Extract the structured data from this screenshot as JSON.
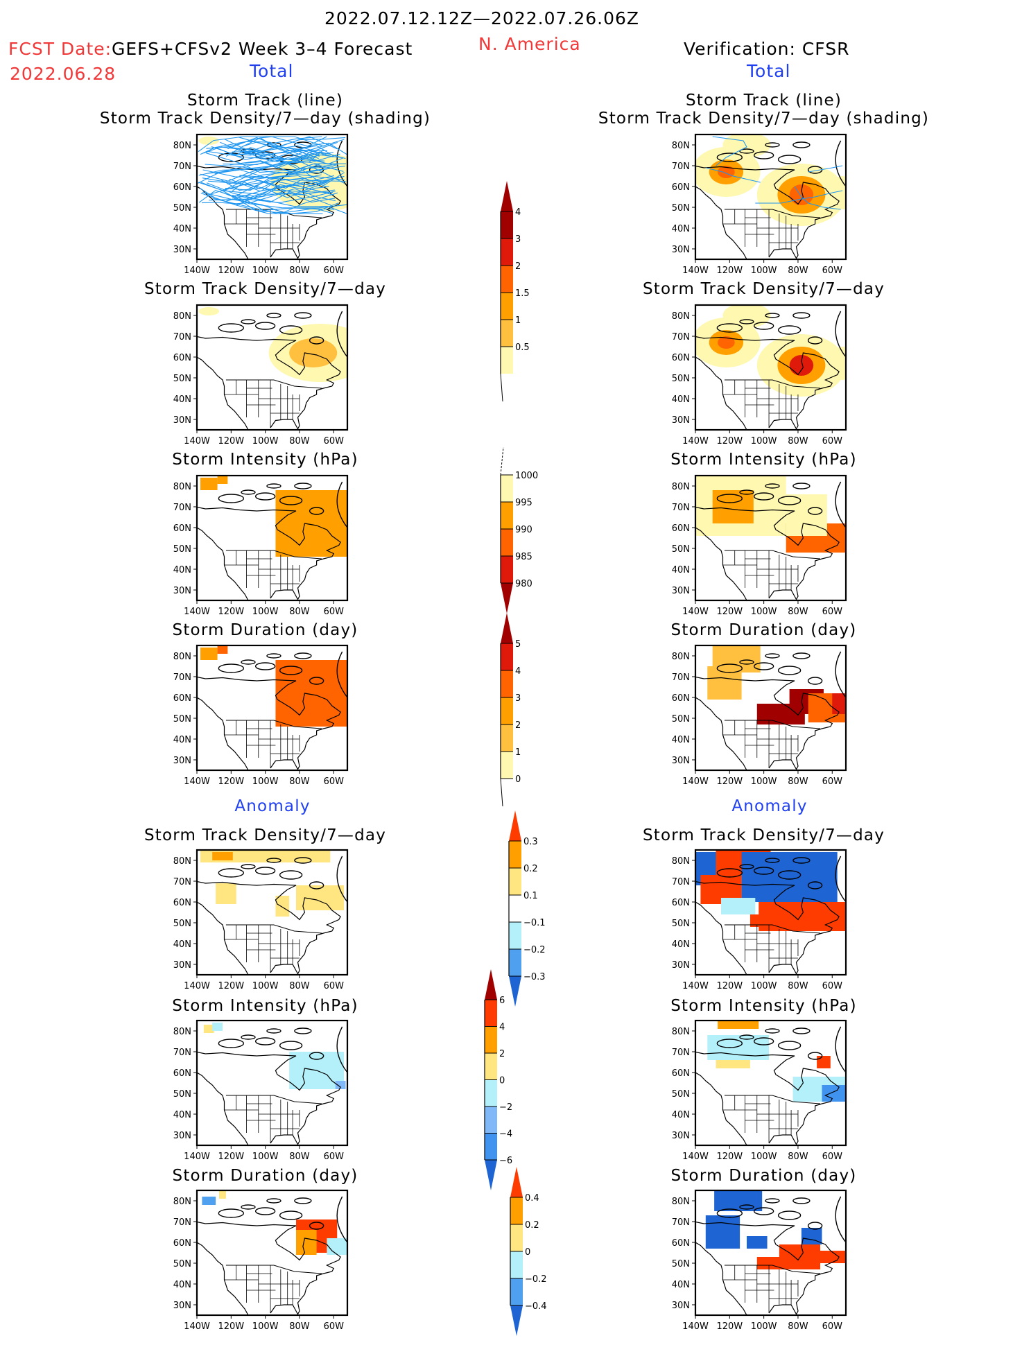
{
  "header": {
    "period": "2022.07.12.12Z—2022.07.26.06Z",
    "fcst_date_label": "FCST Date:",
    "fcst_date_value": "2022.06.28",
    "model": "GEFS+CFSv2 Week 3–4 Forecast",
    "region": "N. America",
    "verification": "Verification: CFSR"
  },
  "columns": {
    "left": {
      "total_label": "Total",
      "anomaly_label": "Anomaly"
    },
    "right": {
      "total_label": "Total",
      "anomaly_label": "Anomaly"
    }
  },
  "axes": {
    "lat_ticks": [
      "80N",
      "70N",
      "60N",
      "50N",
      "40N",
      "30N"
    ],
    "lon_ticks": [
      "140W",
      "120W",
      "100W",
      "80W",
      "60W"
    ]
  },
  "panels": {
    "total": [
      {
        "title_line1": "Storm Track (line)",
        "title_line2": "Storm Track Density/7—day (shading)"
      },
      {
        "title_line1": "",
        "title_line2": "Storm Track Density/7—day"
      },
      {
        "title_line1": "",
        "title_line2": "Storm Intensity (hPa)"
      },
      {
        "title_line1": "",
        "title_line2": "Storm Duration (day)"
      }
    ],
    "anomaly": [
      {
        "title": "Storm Track Density/7—day"
      },
      {
        "title": "Storm Intensity (hPa)"
      },
      {
        "title": "Storm Duration (day)"
      }
    ]
  },
  "colorbars": [
    {
      "name": "density-total",
      "labels": [
        "4",
        "3",
        "2",
        "1.5",
        "1",
        "0.5"
      ],
      "colors": [
        "#a00000",
        "#e01a0a",
        "#ff6400",
        "#ffa000",
        "#ffc040",
        "#fff8b0"
      ],
      "arrow_top": "#a00000"
    },
    {
      "name": "intensity-total",
      "labels": [
        "1000",
        "995",
        "990",
        "985",
        "980"
      ],
      "colors": [
        "#fff8b0",
        "#ffa000",
        "#ff6400",
        "#e01a0a"
      ],
      "arrow_bottom": "#a00000"
    },
    {
      "name": "duration-total",
      "labels": [
        "5",
        "4",
        "3",
        "2",
        "1",
        "0"
      ],
      "colors": [
        "#e01a0a",
        "#ff6400",
        "#ffa000",
        "#ffc040",
        "#fff8b0"
      ],
      "arrow_top": "#a00000"
    },
    {
      "name": "density-anomaly",
      "labels": [
        "0.3",
        "0.2",
        "0.1",
        "−0.1",
        "−0.2",
        "−0.3"
      ],
      "colors": [
        "#ffa000",
        "#ffe680",
        "#ffffff",
        "#b4f0fa",
        "#50a0f0"
      ],
      "arrow_top": "#ff3c00",
      "arrow_bottom": "#1e64d2"
    },
    {
      "name": "intensity-anomaly",
      "labels": [
        "6",
        "4",
        "2",
        "0",
        "−2",
        "−4",
        "−6"
      ],
      "colors": [
        "#ff3c00",
        "#ffa000",
        "#ffe680",
        "#b4f0fa",
        "#80b8f8",
        "#4094f0"
      ],
      "arrow_top": "#a00000",
      "arrow_bottom": "#1e64d2"
    },
    {
      "name": "duration-anomaly",
      "labels": [
        "0.4",
        "0.2",
        "0",
        "−0.2",
        "−0.4"
      ],
      "colors": [
        "#ffa000",
        "#ffe680",
        "#b4f0fa",
        "#50a0f0"
      ],
      "arrow_top": "#ff3c00",
      "arrow_bottom": "#1e64d2"
    }
  ],
  "colors": {
    "track_line": "#1e96f0",
    "header_red": "#f03838",
    "section_blue": "#2040f0"
  }
}
